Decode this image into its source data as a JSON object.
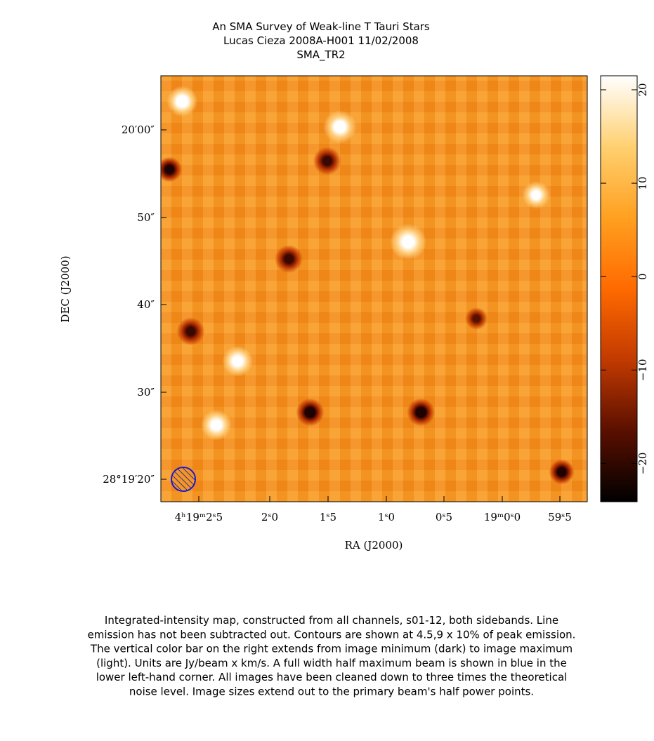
{
  "chart_data": {
    "type": "image-map",
    "title": [
      "An SMA Survey of Weak-line T Tauri Stars",
      "Lucas Cieza   2008A-H001   11/02/2008",
      "SMA_TR2"
    ],
    "x_label": "RA (J2000)",
    "y_label": "DEC (J2000)",
    "xtick_labels": [
      "4ʰ19ᵐ2ˢ5",
      "2ˢ0",
      "1ˢ5",
      "1ˢ0",
      "0ˢ5",
      "19ᵐ0ˢ0",
      "59ˢ5"
    ],
    "ytick_labels": [
      "20′00″",
      "50″",
      "40″",
      "30″",
      "28°19′20″"
    ],
    "colorbar": {
      "clim": [
        -24.1,
        21.5
      ],
      "ticks": [
        {
          "value": -20,
          "label": "−20"
        },
        {
          "value": -10,
          "label": "−10"
        },
        0,
        10,
        20
      ],
      "colors": [
        "#000000",
        "#5a0f00",
        "#c23a00",
        "#ff6a00",
        "#ffa020",
        "#ffd070",
        "#ffffff"
      ]
    },
    "caption": [
      "Integrated-intensity map, constructed from all channels, s01-12, both sidebands.  Line",
      "emission has not been subtracted out.  Contours are shown at 4.5,9 x 10% of peak emission.",
      "The vertical color bar on the right extends from image minimum (dark) to image maximum",
      "(light).  Units are Jy/beam x km/s.  A full width half maximum beam is shown in blue in the",
      "lower left-hand corner.  All images have been cleaned down to three times the theoretical",
      "noise level.  Image sizes extend out to the primary beam's half power points."
    ]
  }
}
